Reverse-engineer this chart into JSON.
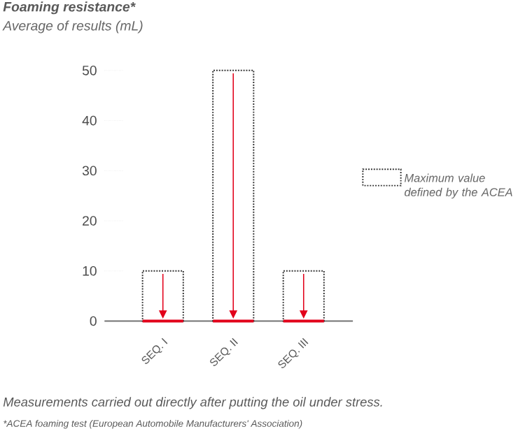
{
  "chart_data": {
    "type": "bar",
    "title": "Foaming resistance*",
    "subtitle": "Average of results  (mL)",
    "categories": [
      "SEQ. I",
      "SEQ. II",
      "SEQ. III"
    ],
    "series": [
      {
        "name": "Maximum value defined by the ACEA",
        "color": "#333333",
        "line_style": "dotted",
        "values": [
          10,
          50,
          10
        ]
      },
      {
        "color": "#e2001a",
        "values": [
          0,
          0,
          0
        ]
      }
    ],
    "ylim": [
      0,
      50
    ],
    "yticks": [
      0,
      10,
      20,
      30,
      40,
      50
    ],
    "grid": false,
    "legend": "right",
    "annotations": [
      "Measurements carried out directly after putting the oil under stress.",
      "*ACEA foaming test (European Automobile Manufacturers' Association)"
    ]
  }
}
